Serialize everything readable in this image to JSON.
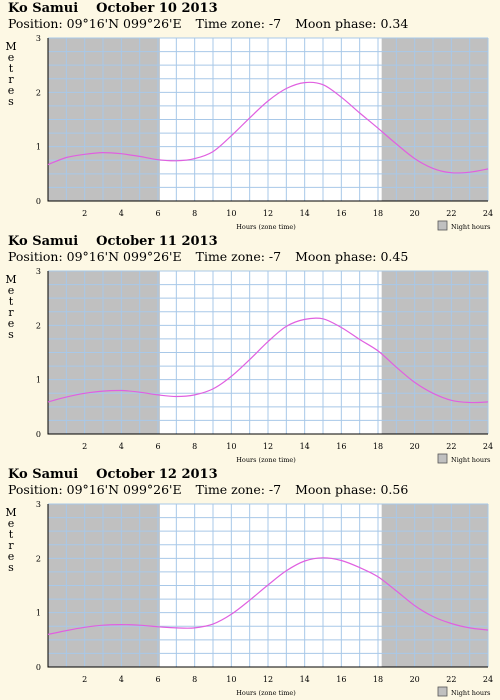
{
  "chart_data": [
    {
      "type": "line",
      "place": "Ko Samui",
      "date": "October 10 2013",
      "position": "Position: 09°16'N 099°26'E",
      "timezone": "Time zone: -7",
      "moon": "Moon phase: 0.34",
      "ylabel": [
        "M",
        "e",
        "t",
        "r",
        "e",
        "s"
      ],
      "xlabel": "Hours (zone time)",
      "legend": "Night hours",
      "xlim": [
        0,
        24
      ],
      "ylim": [
        0,
        3
      ],
      "xticks": [
        2,
        4,
        6,
        8,
        10,
        12,
        14,
        16,
        18,
        20,
        22,
        24
      ],
      "yticks": [
        0,
        1,
        2,
        3
      ],
      "night": [
        [
          0,
          6.1
        ],
        [
          18.2,
          24
        ]
      ],
      "series": [
        {
          "x": [
            0,
            1,
            2,
            3,
            4,
            5,
            6,
            7,
            8,
            9,
            10,
            11,
            12,
            13,
            14,
            15,
            16,
            17,
            18,
            19,
            20,
            21,
            22,
            23,
            24
          ],
          "y": [
            0.67,
            0.8,
            0.86,
            0.89,
            0.87,
            0.82,
            0.76,
            0.74,
            0.78,
            0.91,
            1.2,
            1.53,
            1.84,
            2.07,
            2.18,
            2.14,
            1.91,
            1.62,
            1.34,
            1.05,
            0.78,
            0.6,
            0.52,
            0.53,
            0.59
          ]
        }
      ]
    },
    {
      "type": "line",
      "place": "Ko Samui",
      "date": "October 11 2013",
      "position": "Position: 09°16'N 099°26'E",
      "timezone": "Time zone: -7",
      "moon": "Moon phase: 0.45",
      "ylabel": [
        "M",
        "e",
        "t",
        "r",
        "e",
        "s"
      ],
      "xlabel": "Hours (zone time)",
      "legend": "Night hours",
      "xlim": [
        0,
        24
      ],
      "ylim": [
        0,
        3
      ],
      "xticks": [
        2,
        4,
        6,
        8,
        10,
        12,
        14,
        16,
        18,
        20,
        22,
        24
      ],
      "yticks": [
        0,
        1,
        2,
        3
      ],
      "night": [
        [
          0,
          6.1
        ],
        [
          18.2,
          24
        ]
      ],
      "series": [
        {
          "x": [
            0,
            1,
            2,
            3,
            4,
            5,
            6,
            7,
            8,
            9,
            10,
            11,
            12,
            13,
            14,
            15,
            16,
            17,
            18,
            19,
            20,
            21,
            22,
            23,
            24
          ],
          "y": [
            0.59,
            0.68,
            0.75,
            0.79,
            0.8,
            0.77,
            0.72,
            0.69,
            0.72,
            0.83,
            1.06,
            1.37,
            1.7,
            1.98,
            2.11,
            2.12,
            1.96,
            1.74,
            1.53,
            1.23,
            0.95,
            0.75,
            0.62,
            0.58,
            0.59
          ]
        }
      ]
    },
    {
      "type": "line",
      "place": "Ko Samui",
      "date": "October 12 2013",
      "position": "Position: 09°16'N 099°26'E",
      "timezone": "Time zone: -7",
      "moon": "Moon phase: 0.56",
      "ylabel": [
        "M",
        "e",
        "t",
        "r",
        "e",
        "s"
      ],
      "xlabel": "Hours (zone time)",
      "legend": "Night hours",
      "xlim": [
        0,
        24
      ],
      "ylim": [
        0,
        3
      ],
      "xticks": [
        2,
        4,
        6,
        8,
        10,
        12,
        14,
        16,
        18,
        20,
        22,
        24
      ],
      "yticks": [
        0,
        1,
        2,
        3
      ],
      "night": [
        [
          0,
          6.1
        ],
        [
          18.2,
          24
        ]
      ],
      "series": [
        {
          "x": [
            0,
            1,
            2,
            3,
            4,
            5,
            6,
            7,
            8,
            9,
            10,
            11,
            12,
            13,
            14,
            15,
            16,
            17,
            18,
            19,
            20,
            21,
            22,
            23,
            24
          ],
          "y": [
            0.6,
            0.67,
            0.73,
            0.77,
            0.78,
            0.77,
            0.74,
            0.72,
            0.72,
            0.79,
            0.97,
            1.23,
            1.51,
            1.77,
            1.95,
            2.01,
            1.96,
            1.83,
            1.66,
            1.4,
            1.13,
            0.93,
            0.8,
            0.72,
            0.68
          ]
        }
      ]
    }
  ]
}
